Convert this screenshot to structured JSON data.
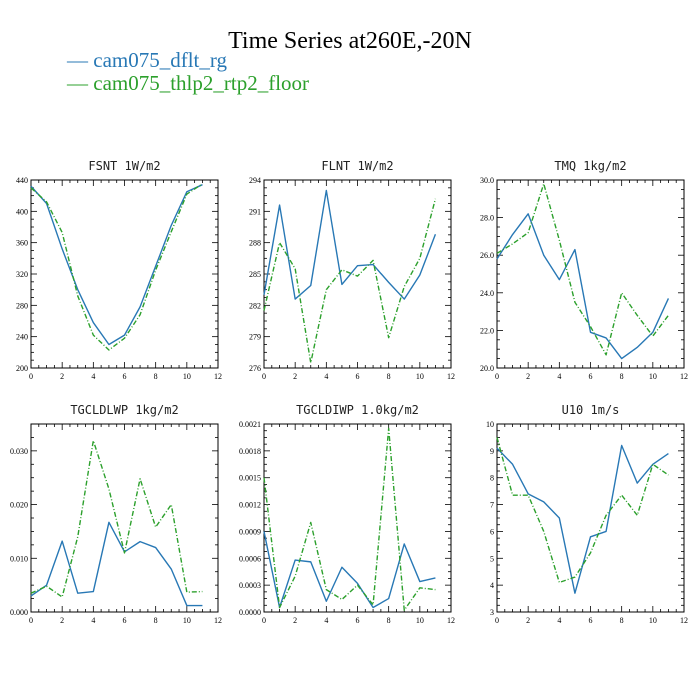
{
  "title": "Time Series at260E,-20N",
  "legend": [
    {
      "marker": "—",
      "label": "cam075_dflt_rg",
      "color": "#2878b5"
    },
    {
      "marker": "—",
      "label": "cam075_thlp2_rtp2_floor",
      "color": "#2ca02c"
    }
  ],
  "chart_data": [
    {
      "type": "line",
      "title": "FSNT   1W/m2",
      "x": [
        0,
        1,
        2,
        3,
        4,
        5,
        6,
        7,
        8,
        9,
        10,
        11
      ],
      "xlim": [
        0,
        12
      ],
      "xticks": [
        "0",
        "2",
        "4",
        "6",
        "8",
        "10",
        "12"
      ],
      "ylim": [
        200,
        440
      ],
      "yticks": [
        "200",
        "240",
        "280",
        "320",
        "360",
        "400",
        "440"
      ],
      "series": [
        {
          "name": "cam075_dflt_rg",
          "style": "solid",
          "color": "#2878b5",
          "values": [
            432,
            410,
            352,
            300,
            258,
            230,
            242,
            278,
            330,
            382,
            425,
            434
          ]
        },
        {
          "name": "cam075_thlp2_rtp2_floor",
          "style": "dashed",
          "color": "#2ca02c",
          "values": [
            430,
            412,
            373,
            292,
            242,
            223,
            238,
            268,
            325,
            374,
            422,
            435
          ]
        }
      ]
    },
    {
      "type": "line",
      "title": "FLNT   1W/m2",
      "x": [
        0,
        1,
        2,
        3,
        4,
        5,
        6,
        7,
        8,
        9,
        10,
        11
      ],
      "xlim": [
        0,
        12
      ],
      "xticks": [
        "0",
        "2",
        "4",
        "6",
        "8",
        "10",
        "12"
      ],
      "ylim": [
        276,
        294
      ],
      "yticks": [
        "276",
        "279",
        "282",
        "285",
        "288",
        "291",
        "294"
      ],
      "series": [
        {
          "name": "cam075_dflt_rg",
          "style": "solid",
          "color": "#2878b5",
          "values": [
            283.0,
            291.6,
            282.6,
            283.9,
            293.0,
            284.0,
            285.8,
            285.9,
            284.2,
            282.6,
            284.9,
            288.8
          ]
        },
        {
          "name": "cam075_thlp2_rtp2_floor",
          "style": "dashed",
          "color": "#2ca02c",
          "values": [
            281.5,
            288.0,
            285.5,
            276.5,
            283.5,
            285.4,
            284.8,
            286.3,
            278.9,
            283.8,
            286.5,
            292.2
          ]
        }
      ]
    },
    {
      "type": "line",
      "title": "TMQ   1kg/m2",
      "x": [
        0,
        1,
        2,
        3,
        4,
        5,
        6,
        7,
        8,
        9,
        10,
        11
      ],
      "xlim": [
        0,
        12
      ],
      "xticks": [
        "0",
        "2",
        "4",
        "6",
        "8",
        "10",
        "12"
      ],
      "ylim": [
        20.0,
        30.0
      ],
      "yticks": [
        "20.0",
        "22.0",
        "24.0",
        "26.0",
        "28.0",
        "30.0"
      ],
      "series": [
        {
          "name": "cam075_dflt_rg",
          "style": "solid",
          "color": "#2878b5",
          "values": [
            25.8,
            27.1,
            28.2,
            26.0,
            24.7,
            26.3,
            21.9,
            21.6,
            20.5,
            21.1,
            21.9,
            23.7
          ]
        },
        {
          "name": "cam075_thlp2_rtp2_floor",
          "style": "dashed",
          "color": "#2ca02c",
          "values": [
            26.1,
            26.6,
            27.2,
            29.8,
            26.8,
            23.5,
            22.2,
            20.7,
            24.0,
            22.8,
            21.7,
            22.8
          ]
        }
      ]
    },
    {
      "type": "line",
      "title": "TGCLDLWP   1kg/m2",
      "x": [
        0,
        1,
        2,
        3,
        4,
        5,
        6,
        7,
        8,
        9,
        10,
        11
      ],
      "xlim": [
        0,
        12
      ],
      "xticks": [
        "0",
        "2",
        "4",
        "6",
        "8",
        "10",
        "12"
      ],
      "ylim": [
        0.0,
        0.035
      ],
      "yticks": [
        "0.000",
        "0.010",
        "0.020",
        "0.030"
      ],
      "ytick_values": [
        0.0,
        0.01,
        0.02,
        0.03
      ],
      "series": [
        {
          "name": "cam075_dflt_rg",
          "style": "solid",
          "color": "#2878b5",
          "values": [
            0.003,
            0.005,
            0.0132,
            0.0035,
            0.0038,
            0.0167,
            0.0112,
            0.0131,
            0.012,
            0.008,
            0.0012,
            0.0012
          ]
        },
        {
          "name": "cam075_thlp2_rtp2_floor",
          "style": "dashed",
          "color": "#2ca02c",
          "values": [
            0.0035,
            0.0048,
            0.0028,
            0.014,
            0.0319,
            0.0229,
            0.011,
            0.0248,
            0.0158,
            0.02,
            0.0037,
            0.0038
          ]
        }
      ]
    },
    {
      "type": "line",
      "title": "TGCLDIWP   1.0kg/m2",
      "x": [
        0,
        1,
        2,
        3,
        4,
        5,
        6,
        7,
        8,
        9,
        10,
        11
      ],
      "xlim": [
        0,
        12
      ],
      "xticks": [
        "0",
        "2",
        "4",
        "6",
        "8",
        "10",
        "12"
      ],
      "ylim": [
        0.0,
        0.0021
      ],
      "yticks": [
        "0.0000",
        "0.0003",
        "0.0006",
        "0.0009",
        "0.0012",
        "0.0015",
        "0.0018",
        "0.0021"
      ],
      "series": [
        {
          "name": "cam075_dflt_rg",
          "style": "solid",
          "color": "#2878b5",
          "values": [
            0.0009,
            5e-05,
            0.00058,
            0.00056,
            0.00012,
            0.0005,
            0.00032,
            5e-05,
            0.00015,
            0.00076,
            0.00034,
            0.00038
          ]
        },
        {
          "name": "cam075_thlp2_rtp2_floor",
          "style": "dashed",
          "color": "#2ca02c",
          "values": [
            0.0015,
            5e-05,
            0.0004,
            0.001,
            0.00025,
            0.00014,
            0.0003,
            8e-05,
            0.00205,
            2e-05,
            0.00027,
            0.00025
          ]
        }
      ]
    },
    {
      "type": "line",
      "title": "U10   1m/s",
      "x": [
        0,
        1,
        2,
        3,
        4,
        5,
        6,
        7,
        8,
        9,
        10,
        11
      ],
      "xlim": [
        0,
        12
      ],
      "xticks": [
        "0",
        "2",
        "4",
        "6",
        "8",
        "10",
        "12"
      ],
      "ylim": [
        3,
        10
      ],
      "yticks": [
        "3",
        "4",
        "5",
        "6",
        "7",
        "8",
        "9",
        "10"
      ],
      "series": [
        {
          "name": "cam075_dflt_rg",
          "style": "solid",
          "color": "#2878b5",
          "values": [
            9.1,
            8.5,
            7.4,
            7.1,
            6.5,
            3.7,
            5.8,
            6.0,
            9.2,
            7.8,
            8.5,
            8.9
          ]
        },
        {
          "name": "cam075_thlp2_rtp2_floor",
          "style": "dashed",
          "color": "#2ca02c",
          "values": [
            9.5,
            7.35,
            7.35,
            6.0,
            4.1,
            4.3,
            5.2,
            6.6,
            7.35,
            6.6,
            8.5,
            8.1
          ]
        }
      ]
    }
  ]
}
